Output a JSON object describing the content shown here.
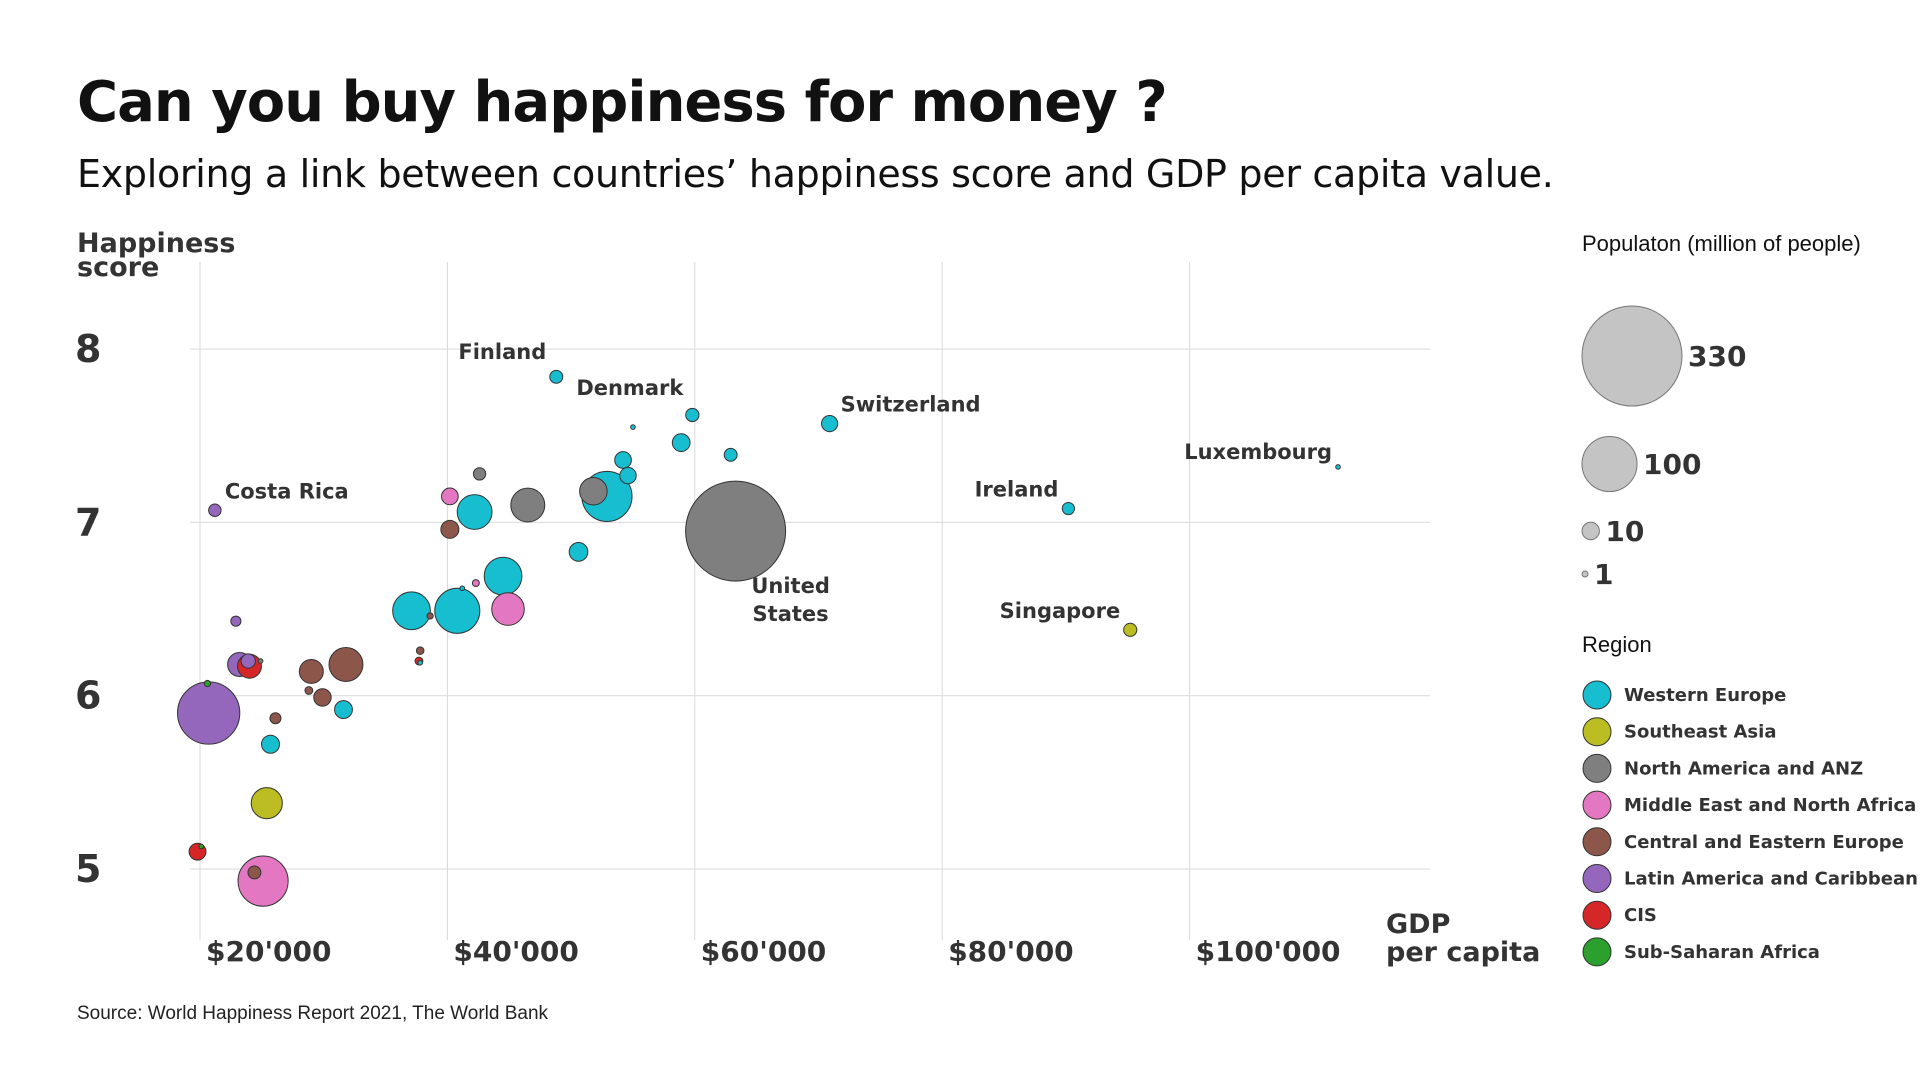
{
  "title": "Can you buy happiness for money ?",
  "subtitle": "Exploring a link between countries’ happiness score and GDP per capita value.",
  "source": "Source: World Happiness Report 2021, The World Bank",
  "chart_data": {
    "type": "scatter",
    "title": "Can you buy happiness for money ?",
    "subtitle": "Exploring a link between countries’ happiness score and GDP per capita value.",
    "xlabel": [
      "GDP",
      "per capita"
    ],
    "ylabel": [
      "Happiness",
      "score"
    ],
    "xlim": [
      13000,
      112000
    ],
    "ylim": [
      4.55,
      8.5
    ],
    "x_ticks": [
      {
        "value": 20000,
        "label": "$20'000"
      },
      {
        "value": 40000,
        "label": "$40'000"
      },
      {
        "value": 60000,
        "label": "$60'000"
      },
      {
        "value": 80000,
        "label": "$80'000"
      },
      {
        "value": 100000,
        "label": "$100'000"
      }
    ],
    "y_ticks": [
      {
        "value": 5,
        "label": "5"
      },
      {
        "value": 6,
        "label": "6"
      },
      {
        "value": 7,
        "label": "7"
      },
      {
        "value": 8,
        "label": "8"
      }
    ],
    "grid": true,
    "size_encoding": "population (million of people)",
    "size_legend": {
      "title": "Populaton (million of people)",
      "values": [
        330,
        100,
        10,
        1
      ],
      "labels": [
        "330",
        "100",
        "10",
        "1"
      ]
    },
    "regions": [
      {
        "name": "Western Europe",
        "color": "#17becf"
      },
      {
        "name": "Southeast Asia",
        "color": "#bcbd22"
      },
      {
        "name": "North America and ANZ",
        "color": "#7f7f7f"
      },
      {
        "name": "Middle East and North Africa",
        "color": "#e377c2"
      },
      {
        "name": "Central and Eastern Europe",
        "color": "#8c564b"
      },
      {
        "name": "Latin America and Caribbean",
        "color": "#9467bd"
      },
      {
        "name": "CIS",
        "color": "#d62728"
      },
      {
        "name": "Sub-Saharan Africa",
        "color": "#2ca02c"
      }
    ],
    "legend_title": "Region",
    "points": [
      {
        "gdp": 48800,
        "score": 7.84,
        "pop": 5.5,
        "region": 0,
        "label": "Finland"
      },
      {
        "gdp": 59800,
        "score": 7.62,
        "pop": 5.8,
        "region": 0,
        "label": "Denmark"
      },
      {
        "gdp": 70900,
        "score": 7.57,
        "pop": 8.6,
        "region": 0,
        "label": "Switzerland"
      },
      {
        "gdp": 112000,
        "score": 7.32,
        "pop": 0.6,
        "region": 0,
        "label": "Luxembourg"
      },
      {
        "gdp": 90200,
        "score": 7.08,
        "pop": 4.9,
        "region": 0,
        "label": "Ireland"
      },
      {
        "gdp": 95200,
        "score": 6.38,
        "pop": 5.7,
        "region": 1,
        "label": "Singapore"
      },
      {
        "gdp": 63300,
        "score": 6.95,
        "pop": 330,
        "region": 2,
        "label": "United States"
      },
      {
        "gdp": 21200,
        "score": 7.07,
        "pop": 5.1,
        "region": 5,
        "label": "Costa Rica"
      },
      {
        "gdp": 55000,
        "score": 7.55,
        "pop": 0.37,
        "region": 0
      },
      {
        "gdp": 58900,
        "score": 7.46,
        "pop": 10.4,
        "region": 0
      },
      {
        "gdp": 62900,
        "score": 7.39,
        "pop": 5.4,
        "region": 0
      },
      {
        "gdp": 54200,
        "score": 7.36,
        "pop": 9.2,
        "region": 0
      },
      {
        "gdp": 54600,
        "score": 7.27,
        "pop": 8.9,
        "region": 0
      },
      {
        "gdp": 52900,
        "score": 7.15,
        "pop": 83,
        "region": 0
      },
      {
        "gdp": 51800,
        "score": 7.18,
        "pop": 25,
        "region": 2
      },
      {
        "gdp": 46500,
        "score": 7.1,
        "pop": 38,
        "region": 2
      },
      {
        "gdp": 42200,
        "score": 7.06,
        "pop": 40,
        "region": 0
      },
      {
        "gdp": 42600,
        "score": 7.28,
        "pop": 5.0,
        "region": 2
      },
      {
        "gdp": 40200,
        "score": 7.15,
        "pop": 9.2,
        "region": 3
      },
      {
        "gdp": 40200,
        "score": 6.96,
        "pop": 10.7,
        "region": 4
      },
      {
        "gdp": 50600,
        "score": 6.83,
        "pop": 11.5,
        "region": 0
      },
      {
        "gdp": 44500,
        "score": 6.69,
        "pop": 47,
        "region": 0
      },
      {
        "gdp": 41200,
        "score": 6.62,
        "pop": 0.5,
        "region": 0
      },
      {
        "gdp": 42300,
        "score": 6.65,
        "pop": 1.6,
        "region": 3
      },
      {
        "gdp": 44900,
        "score": 6.5,
        "pop": 35,
        "region": 3
      },
      {
        "gdp": 37100,
        "score": 6.49,
        "pop": 47,
        "region": 0
      },
      {
        "gdp": 40800,
        "score": 6.49,
        "pop": 67,
        "region": 0
      },
      {
        "gdp": 38600,
        "score": 6.46,
        "pop": 1.3,
        "region": 4
      },
      {
        "gdp": 37800,
        "score": 6.26,
        "pop": 1.9,
        "region": 4
      },
      {
        "gdp": 37700,
        "score": 6.2,
        "pop": 2.0,
        "region": 6
      },
      {
        "gdp": 37800,
        "score": 6.19,
        "pop": 0.5,
        "region": 0
      },
      {
        "gdp": 22900,
        "score": 6.43,
        "pop": 3.4,
        "region": 5
      },
      {
        "gdp": 31800,
        "score": 6.18,
        "pop": 38,
        "region": 4
      },
      {
        "gdp": 29000,
        "score": 6.14,
        "pop": 19,
        "region": 4
      },
      {
        "gdp": 26100,
        "score": 5.87,
        "pop": 4.0,
        "region": 4
      },
      {
        "gdp": 28800,
        "score": 6.03,
        "pop": 2.0,
        "region": 4
      },
      {
        "gdp": 29900,
        "score": 5.99,
        "pop": 10,
        "region": 4
      },
      {
        "gdp": 31600,
        "score": 5.92,
        "pop": 10.5,
        "region": 0
      },
      {
        "gdp": 24900,
        "score": 6.2,
        "pop": 0.5,
        "region": 2
      },
      {
        "gdp": 24000,
        "score": 6.17,
        "pop": 18.9,
        "region": 6
      },
      {
        "gdp": 23900,
        "score": 6.2,
        "pop": 6.7,
        "region": 5
      },
      {
        "gdp": 23200,
        "score": 6.18,
        "pop": 19,
        "region": 5
      },
      {
        "gdp": 20600,
        "score": 6.07,
        "pop": 1.3,
        "region": 7
      },
      {
        "gdp": 20700,
        "score": 5.9,
        "pop": 128,
        "region": 5
      },
      {
        "gdp": 25700,
        "score": 5.72,
        "pop": 10.7,
        "region": 0
      },
      {
        "gdp": 25400,
        "score": 5.38,
        "pop": 32,
        "region": 1
      },
      {
        "gdp": 25100,
        "score": 4.93,
        "pop": 83,
        "region": 3
      },
      {
        "gdp": 20100,
        "score": 5.13,
        "pop": 0.6,
        "region": 7
      },
      {
        "gdp": 19800,
        "score": 5.1,
        "pop": 9.4,
        "region": 6
      },
      {
        "gdp": 24400,
        "score": 4.98,
        "pop": 5.5,
        "region": 4
      }
    ]
  }
}
